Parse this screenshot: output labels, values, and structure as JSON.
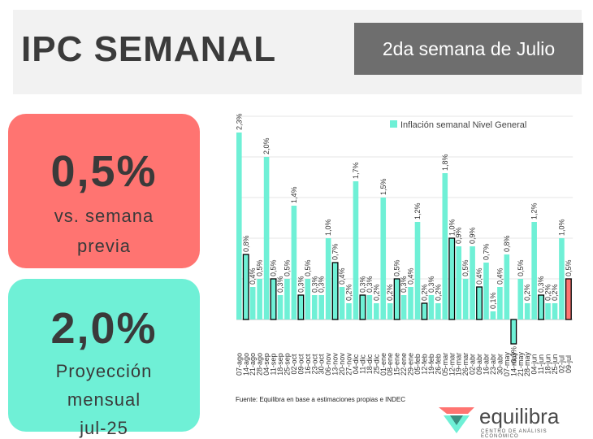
{
  "header": {
    "title": "IPC SEMANAL",
    "week_label": "2da semana de Julio"
  },
  "cards": {
    "weekly": {
      "value": "0,5%",
      "line1": "vs. semana",
      "line2": "previa",
      "color": "#ff7471"
    },
    "monthly": {
      "value": "2,0%",
      "line1": "Proyección",
      "line2": "mensual",
      "line3": "jul-25",
      "color": "#6ff0d6"
    }
  },
  "source": "Fuente: Equilibra en base a estimaciones propias e INDEC",
  "logo": {
    "name": "equilibra",
    "tagline": "CENTRO DE ANÁLISIS ECONÓMICO"
  },
  "chart_data": {
    "type": "bar",
    "legend": "Inflación semanal Nivel General",
    "legend_position": "top-right",
    "categories": [
      "07-ago",
      "14-ago",
      "21-ago",
      "28-ago",
      "04-sep",
      "11-sep",
      "18-sep",
      "25-sep",
      "02-oct",
      "09-oct",
      "16-oct",
      "23-oct",
      "30-oct",
      "06-nov",
      "13-nov",
      "20-nov",
      "27-nov",
      "04-dic",
      "11-dic",
      "18-dic",
      "25-dic",
      "01-ene",
      "08-ene",
      "15-ene",
      "22-ene",
      "29-ene",
      "05-feb",
      "12-feb",
      "19-feb",
      "26-feb",
      "05-mar",
      "12-mar",
      "19-mar",
      "26-mar",
      "02-abr",
      "09-abr",
      "16-abr",
      "23-abr",
      "30-abr",
      "07-may",
      "14-may",
      "21-may",
      "28-may",
      "04-jun",
      "11-jun",
      "18-jun",
      "25-jun",
      "02-jul",
      "09-jul"
    ],
    "values": [
      2.3,
      0.8,
      0.4,
      0.5,
      2.0,
      0.5,
      0.3,
      0.5,
      1.4,
      0.3,
      0.5,
      0.3,
      0.3,
      1.0,
      0.7,
      0.4,
      0.2,
      1.7,
      0.3,
      0.3,
      0.2,
      1.5,
      0.2,
      0.5,
      0.3,
      0.4,
      1.2,
      0.2,
      0.3,
      0.2,
      1.8,
      1.0,
      0.9,
      0.5,
      0.9,
      0.4,
      0.7,
      0.1,
      0.4,
      0.8,
      -0.3,
      0.5,
      0.2,
      1.2,
      0.3,
      0.2,
      0.2,
      1.0,
      0.5
    ],
    "labels": [
      "2,3%",
      "0,8%",
      "0,4%",
      "0,5%",
      "2,0%",
      "0,5%",
      "0,3%",
      "0,5%",
      "1,4%",
      "0,3%",
      "0,5%",
      "0,3%",
      "0,3%",
      "1,0%",
      "0,7%",
      "0,4%",
      "0,2%",
      "1,7%",
      "0,3%",
      "0,3%",
      "0,2%",
      "1,5%",
      "0,2%",
      "0,5%",
      "0,3%",
      "0,4%",
      "1,2%",
      "0,2%",
      "0,3%",
      "0,2%",
      "1,8%",
      "1,0%",
      "0,9%",
      "0,5%",
      "0,9%",
      "0,4%",
      "0,7%",
      "0,1%",
      "0,4%",
      "0,8%",
      "-0,3%",
      "0,5%",
      "0,2%",
      "1,2%",
      "0,3%",
      "0,2%",
      "0,2%",
      "1,0%",
      "0,5%"
    ],
    "outlined": [
      1,
      5,
      9,
      14,
      18,
      23,
      27,
      31,
      35,
      40,
      44,
      48
    ],
    "highlight_last": true,
    "colors": {
      "bar": "#6ff0d6",
      "last": "#ff7471",
      "outline": "#000000",
      "grid": "#e4e4e4"
    },
    "ylim": [
      -0.35,
      2.6
    ],
    "grid": true
  }
}
